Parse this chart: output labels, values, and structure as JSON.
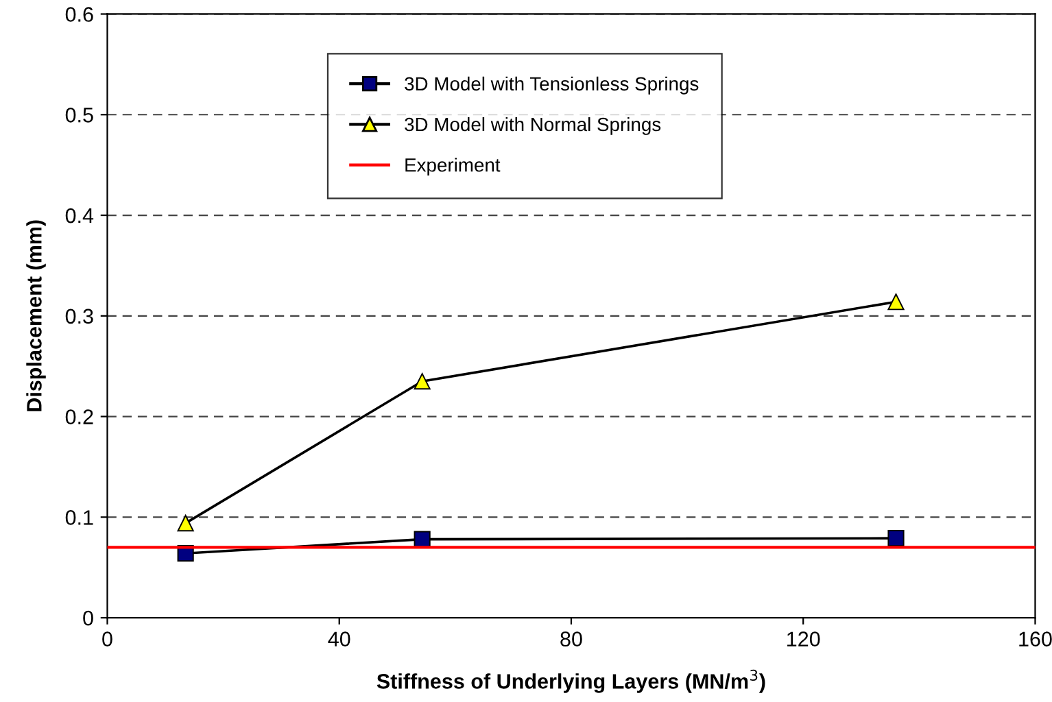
{
  "chart_data": {
    "type": "line",
    "xlabel": "Stiffness of Underlying Layers (MN/m$^{3}$)",
    "ylabel": "Displacement (mm)",
    "x": [
      13.5,
      54.3,
      136
    ],
    "series": [
      {
        "name": "3D Model with Tensionless Springs",
        "color": "#000080",
        "marker": "square",
        "values": [
          0.064,
          0.078,
          0.079
        ]
      },
      {
        "name": "3D Model with Normal Springs",
        "color": "#ffff00",
        "marker": "triangle",
        "values": [
          0.094,
          0.235,
          0.314
        ]
      }
    ],
    "ref_lines": [
      {
        "axis": "y",
        "value": 0.07,
        "label": "Experiment",
        "color": "#ff0000"
      }
    ],
    "xlim": [
      0,
      160
    ],
    "xticks": [
      0,
      40,
      80,
      120,
      160
    ],
    "ylim": [
      0,
      0.6
    ],
    "yticks": [
      0,
      0.1,
      0.2,
      0.3,
      0.4,
      0.5,
      0.6
    ],
    "grid": "y",
    "legend": "top",
    "line_style": "solid"
  }
}
